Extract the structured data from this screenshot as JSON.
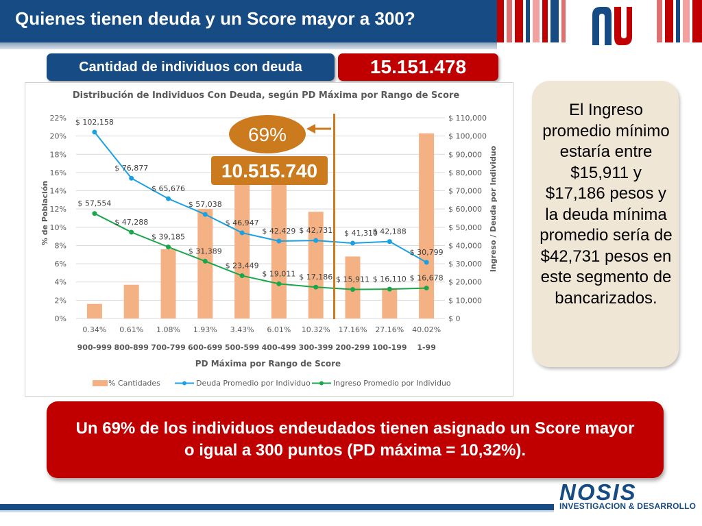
{
  "header": {
    "title": "Quienes tienen deuda y un Score mayor a 300?"
  },
  "summary": {
    "label": "Cantidad de individuos con deuda",
    "value": "15.151.478"
  },
  "callouts": {
    "percent": "69%",
    "count": "10.515.740"
  },
  "note": {
    "text": "El Ingreso promedio mínimo estaría entre $15,911 y $17,186 pesos y la deuda mínima promedio sería de $42,731 pesos en este segmento de bancarizados."
  },
  "conclusion": {
    "text": "Un 69% de los individuos endeudados tienen asignado un Score mayor o igual a 300 puntos (PD máxima = 10,32%)."
  },
  "footer": {
    "brand": "NOSIS",
    "tagline": "INVESTIGACION & DESARROLLO"
  },
  "colors": {
    "navy": "#164b83",
    "red": "#c00000",
    "orange": "#cc7a1e",
    "bar": "#f4b183",
    "blue_line": "#1ba1e2",
    "green_line": "#1aa64a"
  },
  "chart_data": {
    "type": "bar",
    "title": "Distribución de Individuos Con Deuda, según PD Máxima por Rango de Score",
    "xlabel": "PD Máxima por Rango de Score",
    "ylabel": "% de Población",
    "y2label": "Ingreso / Deuda por Individuo",
    "categories": [
      "900-999",
      "800-899",
      "700-799",
      "600-699",
      "500-599",
      "400-499",
      "300-399",
      "200-299",
      "100-199",
      "1-99"
    ],
    "pd_labels": [
      "0.34%",
      "0.61%",
      "1.08%",
      "1.93%",
      "3.43%",
      "6.01%",
      "10.32%",
      "17.16%",
      "27.16%",
      "40.02%"
    ],
    "ylim": [
      0,
      22
    ],
    "y_ticks": [
      "0%",
      "2%",
      "4%",
      "6%",
      "8%",
      "10%",
      "12%",
      "14%",
      "16%",
      "18%",
      "20%",
      "22%"
    ],
    "y2lim": [
      0,
      110000
    ],
    "y2_ticks": [
      "$ 0",
      "$ 10,000",
      "$ 20,000",
      "$ 30,000",
      "$ 40,000",
      "$ 50,000",
      "$ 60,000",
      "$ 70,000",
      "$ 80,000",
      "$ 90,000",
      "$ 100,000",
      "$ 110,000"
    ],
    "legend_position": "bottom",
    "series": [
      {
        "name": "% Cantidades",
        "type": "bar",
        "axis": "left",
        "values": [
          1.6,
          3.7,
          7.6,
          12.0,
          14.8,
          16.1,
          11.7,
          6.8,
          3.3,
          20.3
        ]
      },
      {
        "name": "Deuda Promedio por Individuo",
        "type": "line",
        "axis": "right",
        "values": [
          102158,
          76877,
          65676,
          57038,
          46947,
          42429,
          42731,
          41310,
          42188,
          30799
        ],
        "labels": [
          "$ 102,158",
          "$ 76,877",
          "$ 65,676",
          "$ 57,038",
          "$ 46,947",
          "$ 42,429",
          "$ 42,731",
          "$ 41,310",
          "$ 42,188",
          "$ 30,799"
        ]
      },
      {
        "name": "Ingreso Promedio por Individuo",
        "type": "line",
        "axis": "right",
        "values": [
          57554,
          47288,
          39185,
          31389,
          23449,
          19011,
          17186,
          15911,
          16110,
          16678
        ],
        "labels": [
          "$ 57,554",
          "$ 47,288",
          "$ 39,185",
          "$ 31,389",
          "$ 23,449",
          "$ 19,011",
          "$ 17,186",
          "$ 15,911",
          "$ 16,110",
          "$ 16,678"
        ]
      }
    ]
  }
}
